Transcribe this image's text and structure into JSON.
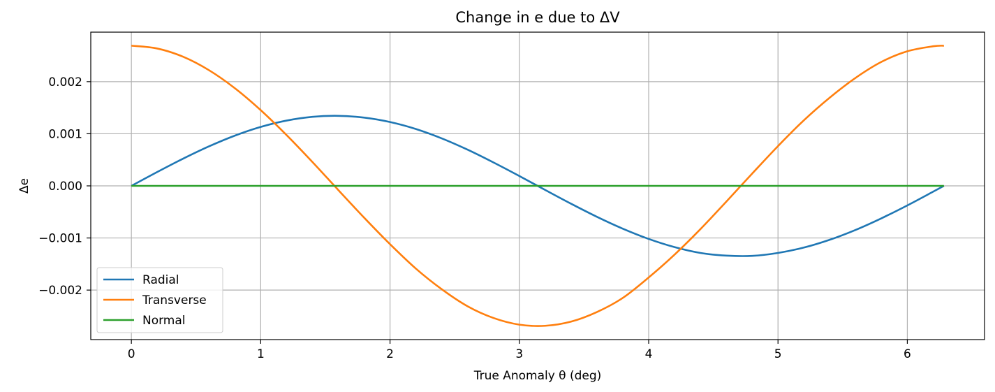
{
  "chart_data": {
    "type": "line",
    "title": "Change in e due to ΔV",
    "xlabel": "True Anomaly θ (deg)",
    "ylabel": "Δe",
    "xlim": [
      -0.314,
      6.597
    ],
    "ylim": [
      -0.00295,
      0.00295
    ],
    "x_ticks": [
      0,
      1,
      2,
      3,
      4,
      5,
      6
    ],
    "x_tick_labels": [
      "0",
      "1",
      "2",
      "3",
      "4",
      "5",
      "6"
    ],
    "y_ticks": [
      0.002,
      0.001,
      0.0,
      -0.001,
      -0.002
    ],
    "y_tick_labels": [
      "0.002",
      "0.001",
      "0.000",
      "−0.001",
      "−0.002"
    ],
    "grid": true,
    "legend_position": "lower-left",
    "x": [
      0,
      0.2,
      0.4,
      0.6,
      0.8,
      1.0,
      1.2,
      1.4,
      1.6,
      1.8,
      2.0,
      2.2,
      2.4,
      2.6,
      2.8,
      3.0,
      3.2,
      3.4,
      3.6,
      3.8,
      4.0,
      4.2,
      4.4,
      4.6,
      4.8,
      5.0,
      5.2,
      5.4,
      5.6,
      5.8,
      6.0,
      6.2,
      6.283
    ],
    "series": [
      {
        "name": "Radial",
        "color": "#1f77b4",
        "values": [
          0.0,
          0.000266,
          0.000522,
          0.000758,
          0.000964,
          0.001131,
          0.001253,
          0.001325,
          0.001344,
          0.00131,
          0.001225,
          0.001091,
          0.000911,
          0.000694,
          0.000449,
          0.000189,
          -7.9e-05,
          -0.000343,
          -0.000594,
          -0.000822,
          -0.001018,
          -0.001175,
          -0.001287,
          -0.001338,
          -0.001343,
          -0.001287,
          -0.001184,
          -0.001034,
          -0.000845,
          -0.000622,
          -0.000375,
          -0.000111,
          0.0
        ]
      },
      {
        "name": "Transverse",
        "color": "#ff7f0e",
        "values": [
          0.00269,
          0.002636,
          0.002478,
          0.00222,
          0.001874,
          0.001453,
          0.000975,
          0.000458,
          -8e-05,
          -0.000611,
          -0.001119,
          -0.001588,
          -0.001984,
          -0.002311,
          -0.002535,
          -0.002663,
          -0.002685,
          -0.002605,
          -0.002421,
          -0.00215,
          -0.001758,
          -0.00132,
          -0.000831,
          -0.000303,
          0.000235,
          0.000763,
          0.001258,
          0.001693,
          0.002073,
          0.00238,
          0.002583,
          0.002679,
          0.00269
        ]
      },
      {
        "name": "Normal",
        "color": "#2ca02c",
        "values": [
          0,
          0,
          0,
          0,
          0,
          0,
          0,
          0,
          0,
          0,
          0,
          0,
          0,
          0,
          0,
          0,
          0,
          0,
          0,
          0,
          0,
          0,
          0,
          0,
          0,
          0,
          0,
          0,
          0,
          0,
          0,
          0,
          0
        ]
      }
    ]
  }
}
